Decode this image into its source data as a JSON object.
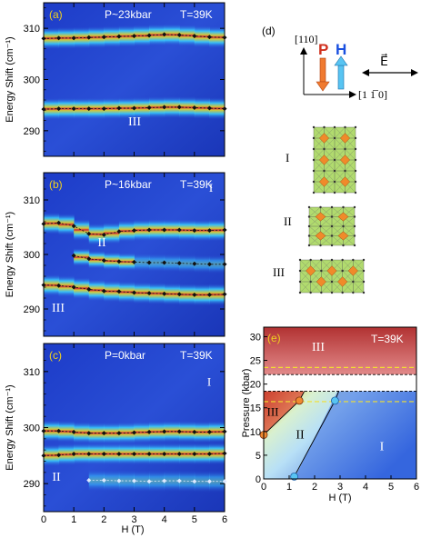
{
  "panels": [
    {
      "label": "(a)",
      "pressure": "P~23kbar",
      "temp": "T=39K",
      "ylabel": "Energy Shift (cm⁻¹)",
      "yticks": [
        "310",
        "300",
        "290"
      ],
      "phase_labels": [
        "III"
      ],
      "series": [
        {
          "name": "",
          "x": [
            0,
            0.5,
            1,
            1.5,
            2,
            2.5,
            3,
            3.5,
            4,
            4.5,
            5,
            5.5,
            6
          ],
          "y": [
            308.0,
            308.1,
            308.1,
            308.2,
            308.3,
            308.4,
            308.5,
            308.6,
            308.8,
            308.7,
            308.5,
            308.3,
            308.2
          ]
        },
        {
          "name": "",
          "x": [
            0,
            0.5,
            1,
            1.5,
            2,
            2.5,
            3,
            3.5,
            4,
            4.5,
            5,
            5.5,
            6
          ],
          "y": [
            294.2,
            294.3,
            294.3,
            294.3,
            294.3,
            294.4,
            294.4,
            294.5,
            294.6,
            294.6,
            294.5,
            294.4,
            294.3
          ]
        }
      ]
    },
    {
      "label": "(b)",
      "pressure": "P~16kbar",
      "temp": "T=39K",
      "ylabel": "Energy Shift (cm⁻¹)",
      "yticks": [
        "310",
        "300",
        "290"
      ],
      "phase_labels": [
        "I",
        "II",
        "III"
      ],
      "series": [
        {
          "name": "",
          "x": [
            0,
            0.5,
            1,
            1.5,
            2,
            2.5,
            3,
            3.5,
            4,
            4.5,
            5,
            5.5,
            6
          ],
          "y": [
            305.6,
            305.8,
            305.2,
            303.8,
            303.6,
            304.2,
            304.4,
            304.5,
            304.5,
            304.5,
            304.4,
            304.4,
            304.5
          ]
        },
        {
          "name": "",
          "x": [
            1,
            1.5,
            2,
            2.5,
            3,
            3.5,
            4,
            4.5,
            5,
            5.5,
            6
          ],
          "y": [
            299.8,
            299.2,
            298.9,
            298.7,
            298.6,
            298.5,
            298.5,
            298.4,
            298.3,
            298.2,
            298.2
          ]
        },
        {
          "name": "",
          "x": [
            0,
            0.5,
            1,
            1.5,
            2,
            2.5,
            3,
            3.5,
            4,
            4.5,
            5,
            5.5,
            6
          ],
          "y": [
            294.4,
            294.3,
            294.0,
            293.6,
            293.3,
            293.2,
            293.0,
            292.9,
            292.8,
            292.7,
            292.6,
            292.6,
            292.7
          ]
        }
      ]
    },
    {
      "label": "(c)",
      "pressure": "P=0kbar",
      "temp": "T=39K",
      "ylabel": "Energy Shift (cm⁻¹)",
      "yticks": [
        "310",
        "300",
        "290"
      ],
      "phase_labels": [
        "I",
        "II"
      ],
      "series": [
        {
          "name": "",
          "x": [
            0,
            0.5,
            1,
            1.5,
            2,
            2.5,
            3,
            3.5,
            4,
            4.5,
            5,
            5.5,
            6
          ],
          "y": [
            299.4,
            299.4,
            299.2,
            299.0,
            299.0,
            299.0,
            299.1,
            299.2,
            299.3,
            299.3,
            299.2,
            299.2,
            299.3
          ]
        },
        {
          "name": "",
          "x": [
            0,
            0.5,
            1,
            1.5,
            2,
            2.5,
            3,
            3.5,
            4,
            4.5,
            5,
            5.5,
            6
          ],
          "y": [
            295.0,
            295.1,
            295.3,
            295.3,
            295.3,
            295.3,
            295.3,
            295.3,
            295.3,
            295.3,
            295.3,
            295.3,
            295.4
          ]
        },
        {
          "name": "",
          "x": [
            1.5,
            2,
            2.5,
            3,
            3.5,
            4,
            4.5,
            5,
            5.5,
            6
          ],
          "y": [
            290.6,
            290.6,
            290.5,
            290.5,
            290.4,
            290.5,
            290.5,
            290.4,
            290.4,
            290.4
          ]
        }
      ]
    }
  ],
  "xaxis": {
    "label": "H (T)",
    "ticks": [
      "0",
      "1",
      "2",
      "3",
      "4",
      "5",
      "6"
    ]
  },
  "panel_d": {
    "label": "(d)",
    "axis_up": "[110]",
    "axis_right": "[1 1̅ 0]",
    "p_label": "P",
    "h_label": "H",
    "e_label": "E⃗",
    "structures": [
      "I",
      "II",
      "III"
    ]
  },
  "panel_e": {
    "label": "(e)",
    "temp": "T=39K",
    "ylabel": "Pressure (kbar)",
    "xlabel": "H (T)",
    "xticks": [
      "0",
      "1",
      "2",
      "3",
      "4",
      "5",
      "6"
    ],
    "yticks": [
      "30",
      "25",
      "20",
      "15",
      "10",
      "5",
      "0"
    ],
    "phase_labels": [
      "III",
      "III",
      "II",
      "I"
    ],
    "orange_points": {
      "x": [
        0,
        1.4
      ],
      "y": [
        9.3,
        16.5
      ]
    },
    "blue_points": {
      "x": [
        1.2,
        2.8
      ],
      "y": [
        0.5,
        16.5
      ]
    }
  }
}
